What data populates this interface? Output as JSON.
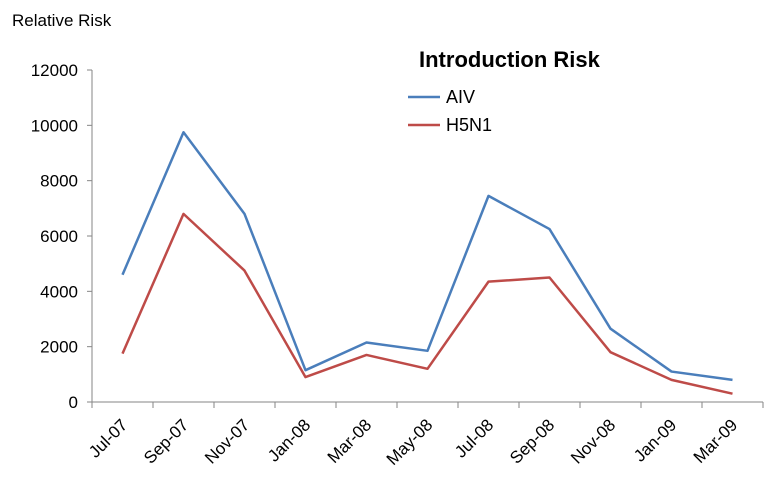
{
  "chart_data": {
    "type": "line",
    "title": "Introduction Risk",
    "xlabel": "",
    "ylabel": "Relative Risk",
    "categories": [
      "Jul-07",
      "Sep-07",
      "Nov-07",
      "Jan-08",
      "Mar-08",
      "May-08",
      "Jul-08",
      "Sep-08",
      "Nov-08",
      "Jan-09",
      "Mar-09"
    ],
    "ylim": [
      0,
      12000
    ],
    "yticks": [
      "0",
      "2000",
      "4000",
      "6000",
      "8000",
      "10000",
      "12000"
    ],
    "grid": false,
    "legend_position": "top-center",
    "series": [
      {
        "name": "AIV",
        "color": "#4a7ebb",
        "values": [
          4600,
          9750,
          6800,
          1150,
          2150,
          1850,
          7450,
          6250,
          2650,
          1100,
          800
        ]
      },
      {
        "name": "H5N1",
        "color": "#be4b48",
        "values": [
          1750,
          6800,
          4750,
          900,
          1700,
          1200,
          4350,
          4500,
          1800,
          800,
          300
        ]
      }
    ]
  }
}
